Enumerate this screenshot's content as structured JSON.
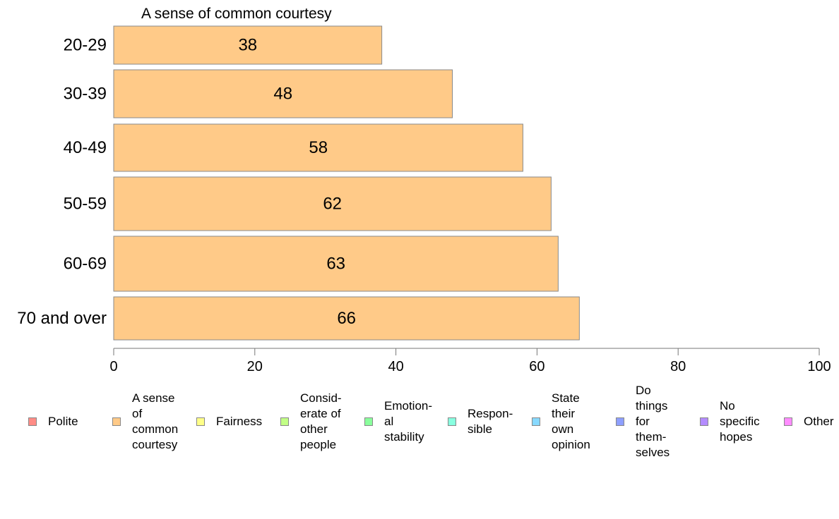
{
  "chart_data": {
    "type": "bar",
    "orientation": "horizontal",
    "stacked": true,
    "title": "A sense of common courtesy",
    "categories": [
      "20-29",
      "30-39",
      "40-49",
      "50-59",
      "60-69",
      "70 and over"
    ],
    "series": [
      {
        "name": "A sense of common courtesy",
        "color": "#ffca88",
        "values": [
          38,
          48,
          58,
          62,
          63,
          66
        ],
        "labels": [
          "38",
          "48",
          "58",
          "62",
          "63",
          "66"
        ]
      }
    ],
    "xlim": [
      0,
      100
    ],
    "xticks": [
      "0",
      "20",
      "40",
      "60",
      "80",
      "100"
    ],
    "grid": false,
    "legend_position": "bottom",
    "legend": [
      {
        "label": "Polite",
        "color": "#ff8c86"
      },
      {
        "label": "A sense\nof\ncommon\ncourtesy",
        "color": "#ffca88"
      },
      {
        "label": "Fairness",
        "color": "#ffff88"
      },
      {
        "label": "Consid-\nerate of\nother\npeople",
        "color": "#c2ff86"
      },
      {
        "label": "Emotion-\nal\nstability",
        "color": "#8aff9c"
      },
      {
        "label": "Respon-\nsible",
        "color": "#88ffe0"
      },
      {
        "label": "State\ntheir\nown\nopinion",
        "color": "#88d9ff"
      },
      {
        "label": "Do\nthings\nfor\nthem-\nselves",
        "color": "#8e9fff"
      },
      {
        "label": "No\nspecific\nhopes",
        "color": "#b48cff"
      },
      {
        "label": "Other",
        "color": "#ff8cff"
      }
    ]
  }
}
